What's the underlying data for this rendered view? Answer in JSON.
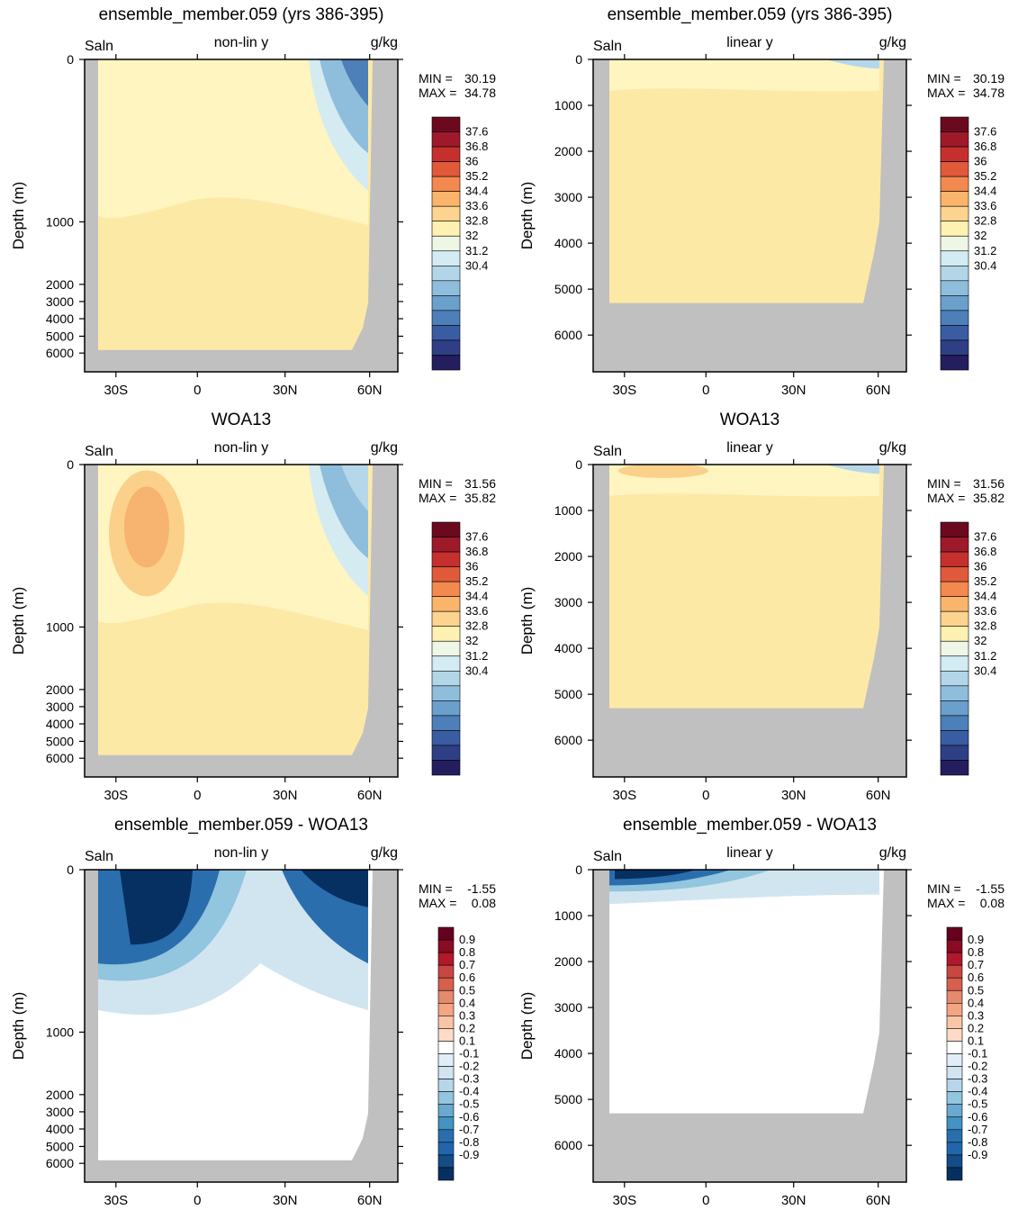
{
  "chart_data": [
    {
      "type": "heatmap",
      "title": "ensemble_member.059 (yrs 386-395)",
      "left_label": "Saln",
      "center_label": "non-lin y",
      "right_label": "g/kg",
      "ylabel": "Depth (m)",
      "xticks": [
        "30S",
        "0",
        "30N",
        "60N"
      ],
      "yticks": [
        "0",
        "1000",
        "2000",
        "3000",
        "4000",
        "5000",
        "6000"
      ],
      "yscale": "non-linear",
      "ylim": [
        6500,
        0
      ],
      "min_label": "MIN =",
      "min_value": "30.19",
      "max_label": "MAX =",
      "max_value": "34.78",
      "colorbar": {
        "labels": [
          "37.6",
          "36.8",
          "36",
          "35.2",
          "34.4",
          "33.6",
          "32.8",
          "32",
          "31.2",
          "30.4"
        ]
      }
    },
    {
      "type": "heatmap",
      "title": "ensemble_member.059 (yrs 386-395)",
      "left_label": "Saln",
      "center_label": "linear y",
      "right_label": "g/kg",
      "ylabel": "Depth (m)",
      "xticks": [
        "30S",
        "0",
        "30N",
        "60N"
      ],
      "yticks": [
        "0",
        "1000",
        "2000",
        "3000",
        "4000",
        "5000",
        "6000"
      ],
      "yscale": "linear",
      "ylim": [
        6800,
        0
      ],
      "min_label": "MIN =",
      "min_value": "30.19",
      "max_label": "MAX =",
      "max_value": "34.78",
      "colorbar": {
        "labels": [
          "37.6",
          "36.8",
          "36",
          "35.2",
          "34.4",
          "33.6",
          "32.8",
          "32",
          "31.2",
          "30.4"
        ]
      }
    },
    {
      "type": "heatmap",
      "title": "WOA13",
      "left_label": "Saln",
      "center_label": "non-lin y",
      "right_label": "g/kg",
      "ylabel": "Depth (m)",
      "xticks": [
        "30S",
        "0",
        "30N",
        "60N"
      ],
      "yticks": [
        "0",
        "1000",
        "2000",
        "3000",
        "4000",
        "5000",
        "6000"
      ],
      "yscale": "non-linear",
      "ylim": [
        6500,
        0
      ],
      "min_label": "MIN =",
      "min_value": "31.56",
      "max_label": "MAX =",
      "max_value": "35.82",
      "colorbar": {
        "labels": [
          "37.6",
          "36.8",
          "36",
          "35.2",
          "34.4",
          "33.6",
          "32.8",
          "32",
          "31.2",
          "30.4"
        ]
      }
    },
    {
      "type": "heatmap",
      "title": "WOA13",
      "left_label": "Saln",
      "center_label": "linear y",
      "right_label": "g/kg",
      "ylabel": "Depth (m)",
      "xticks": [
        "30S",
        "0",
        "30N",
        "60N"
      ],
      "yticks": [
        "0",
        "1000",
        "2000",
        "3000",
        "4000",
        "5000",
        "6000"
      ],
      "yscale": "linear",
      "ylim": [
        6800,
        0
      ],
      "min_label": "MIN =",
      "min_value": "31.56",
      "max_label": "MAX =",
      "max_value": "35.82",
      "colorbar": {
        "labels": [
          "37.6",
          "36.8",
          "36",
          "35.2",
          "34.4",
          "33.6",
          "32.8",
          "32",
          "31.2",
          "30.4"
        ]
      }
    },
    {
      "type": "heatmap",
      "title": "ensemble_member.059 - WOA13",
      "left_label": "Saln",
      "center_label": "non-lin y",
      "right_label": "g/kg",
      "ylabel": "Depth (m)",
      "xticks": [
        "30S",
        "0",
        "30N",
        "60N"
      ],
      "yticks": [
        "0",
        "1000",
        "2000",
        "3000",
        "4000",
        "5000",
        "6000"
      ],
      "yscale": "non-linear",
      "ylim": [
        6500,
        0
      ],
      "min_label": "MIN =",
      "min_value": "-1.55",
      "max_label": "MAX =",
      "max_value": "0.08",
      "colorbar": {
        "labels": [
          "0.9",
          "0.8",
          "0.7",
          "0.6",
          "0.5",
          "0.4",
          "0.3",
          "0.2",
          "0.1",
          "-0.1",
          "-0.2",
          "-0.3",
          "-0.4",
          "-0.5",
          "-0.6",
          "-0.7",
          "-0.8",
          "-0.9"
        ]
      }
    },
    {
      "type": "heatmap",
      "title": "ensemble_member.059 - WOA13",
      "left_label": "Saln",
      "center_label": "linear y",
      "right_label": "g/kg",
      "ylabel": "Depth (m)",
      "xticks": [
        "30S",
        "0",
        "30N",
        "60N"
      ],
      "yticks": [
        "0",
        "1000",
        "2000",
        "3000",
        "4000",
        "5000",
        "6000"
      ],
      "yscale": "linear",
      "ylim": [
        6800,
        0
      ],
      "min_label": "MIN =",
      "min_value": "-1.55",
      "max_label": "MAX =",
      "max_value": "0.08",
      "colorbar": {
        "labels": [
          "0.9",
          "0.8",
          "0.7",
          "0.6",
          "0.5",
          "0.4",
          "0.3",
          "0.2",
          "0.1",
          "-0.1",
          "-0.2",
          "-0.3",
          "-0.4",
          "-0.5",
          "-0.6",
          "-0.7",
          "-0.8",
          "-0.9"
        ]
      }
    }
  ],
  "colors": {
    "land": "#c0c0c0",
    "salinity_bins": [
      "#6b0a1f",
      "#9e1a2b",
      "#c5302e",
      "#e05a3a",
      "#f3894f",
      "#fab56b",
      "#fdd48f",
      "#fef1b1",
      "#eef7e6",
      "#d3ebf2",
      "#b2d6e8",
      "#8ebedc",
      "#6b9fcc",
      "#4d7fb8",
      "#3a5ca3",
      "#2e3f85",
      "#241d5e"
    ],
    "diff_bins": [
      "#67001f",
      "#8b0a24",
      "#b2182b",
      "#c94741",
      "#d6604d",
      "#e58a6f",
      "#f4a582",
      "#f8c5a7",
      "#fddbc7",
      "#ffffff",
      "#e1eef7",
      "#d1e5f0",
      "#b6d7ea",
      "#92c5de",
      "#6aa8d0",
      "#4393c3",
      "#2b6eae",
      "#2166ac",
      "#134c87",
      "#053061"
    ]
  }
}
